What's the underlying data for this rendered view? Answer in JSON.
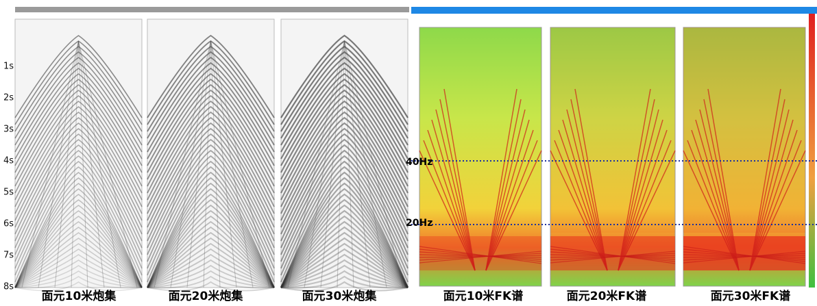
{
  "time_axis": {
    "labels": [
      "1s",
      "2s",
      "3s",
      "4s",
      "5s",
      "6s",
      "7s",
      "8s"
    ]
  },
  "panels": [
    {
      "caption": "面元10米炮集"
    },
    {
      "caption": "面元20米炮集"
    },
    {
      "caption": "面元30米炮集"
    },
    {
      "caption": "面元10米FK谱"
    },
    {
      "caption": "面元20米FK谱"
    },
    {
      "caption": "面元30米FK谱"
    }
  ],
  "frequency_markers": [
    {
      "label": "40Hz"
    },
    {
      "label": "20Hz"
    }
  ]
}
